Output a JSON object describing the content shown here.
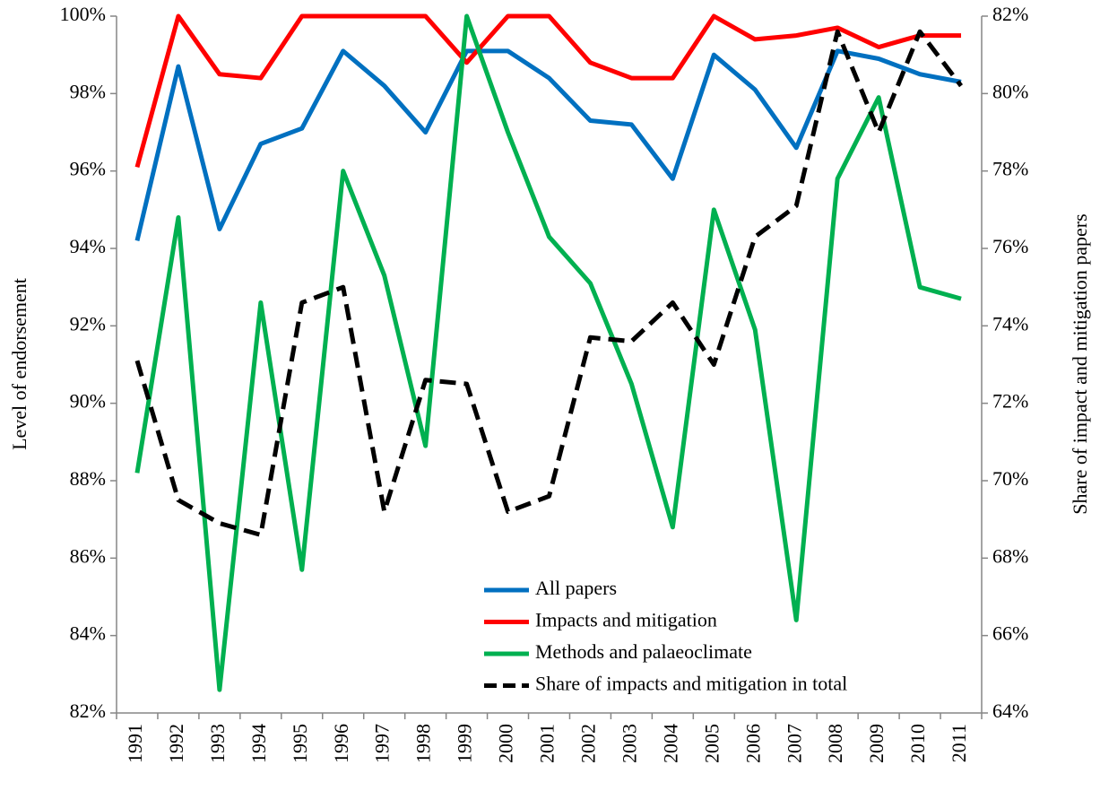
{
  "chart_data": {
    "type": "line",
    "y_label": "Level of endorsement",
    "y2_label": "Share of impact and mitigation papers",
    "categories": [
      "1991",
      "1992",
      "1993",
      "1994",
      "1995",
      "1996",
      "1997",
      "1998",
      "1999",
      "2000",
      "2001",
      "2002",
      "2003",
      "2004",
      "2005",
      "2006",
      "2007",
      "2008",
      "2009",
      "2010",
      "2011"
    ],
    "series": [
      {
        "name": "All papers",
        "color": "#0070c0",
        "values": [
          94.2,
          98.7,
          94.5,
          96.7,
          97.1,
          99.1,
          98.2,
          97.0,
          99.1,
          99.1,
          98.4,
          97.3,
          97.2,
          95.8,
          99.0,
          98.1,
          96.6,
          99.1,
          98.9,
          98.5,
          98.3
        ]
      },
      {
        "name": "Impacts and mitigation",
        "color": "#ff0000",
        "values": [
          96.1,
          100,
          98.5,
          98.4,
          100,
          100,
          100,
          100,
          98.8,
          100,
          100,
          98.8,
          98.4,
          98.4,
          100,
          99.4,
          99.5,
          99.7,
          99.2,
          99.5,
          99.5
        ]
      },
      {
        "name": "Methods and palaeoclimate",
        "color": "#00b050",
        "values": [
          88.2,
          94.8,
          82.6,
          92.6,
          85.7,
          96.0,
          93.3,
          88.9,
          100,
          97.0,
          94.3,
          93.1,
          90.5,
          86.8,
          95.0,
          91.9,
          84.4,
          95.8,
          97.9,
          93.0,
          92.7
        ]
      },
      {
        "name": "Share of impacts and mitigation in total",
        "color": "#000000",
        "dashed": true,
        "axis": "y2",
        "values": [
          73.1,
          69.5,
          68.9,
          68.6,
          74.6,
          75.0,
          69.2,
          72.6,
          72.5,
          69.2,
          69.6,
          73.7,
          73.6,
          74.6,
          73.0,
          76.3,
          77.1,
          81.6,
          79.0,
          81.6,
          80.2
        ]
      }
    ],
    "ylim": [
      82,
      100
    ],
    "yticks": [
      {
        "value": 82,
        "label": "82%"
      },
      {
        "value": 84,
        "label": "84%"
      },
      {
        "value": 86,
        "label": "86%"
      },
      {
        "value": 88,
        "label": "88%"
      },
      {
        "value": 90,
        "label": "90%"
      },
      {
        "value": 92,
        "label": "92%"
      },
      {
        "value": 94,
        "label": "94%"
      },
      {
        "value": 96,
        "label": "96%"
      },
      {
        "value": 98,
        "label": "98%"
      },
      {
        "value": 100,
        "label": "100%"
      }
    ],
    "y2lim": [
      64,
      82
    ],
    "y2ticks": [
      {
        "value": 64,
        "label": "64%"
      },
      {
        "value": 66,
        "label": "66%"
      },
      {
        "value": 68,
        "label": "68%"
      },
      {
        "value": 70,
        "label": "70%"
      },
      {
        "value": 72,
        "label": "72%"
      },
      {
        "value": 74,
        "label": "74%"
      },
      {
        "value": 76,
        "label": "76%"
      },
      {
        "value": 78,
        "label": "78%"
      },
      {
        "value": 80,
        "label": "80%"
      },
      {
        "value": 82,
        "label": "82%"
      }
    ],
    "grid": false,
    "legend": "bottom-center"
  }
}
